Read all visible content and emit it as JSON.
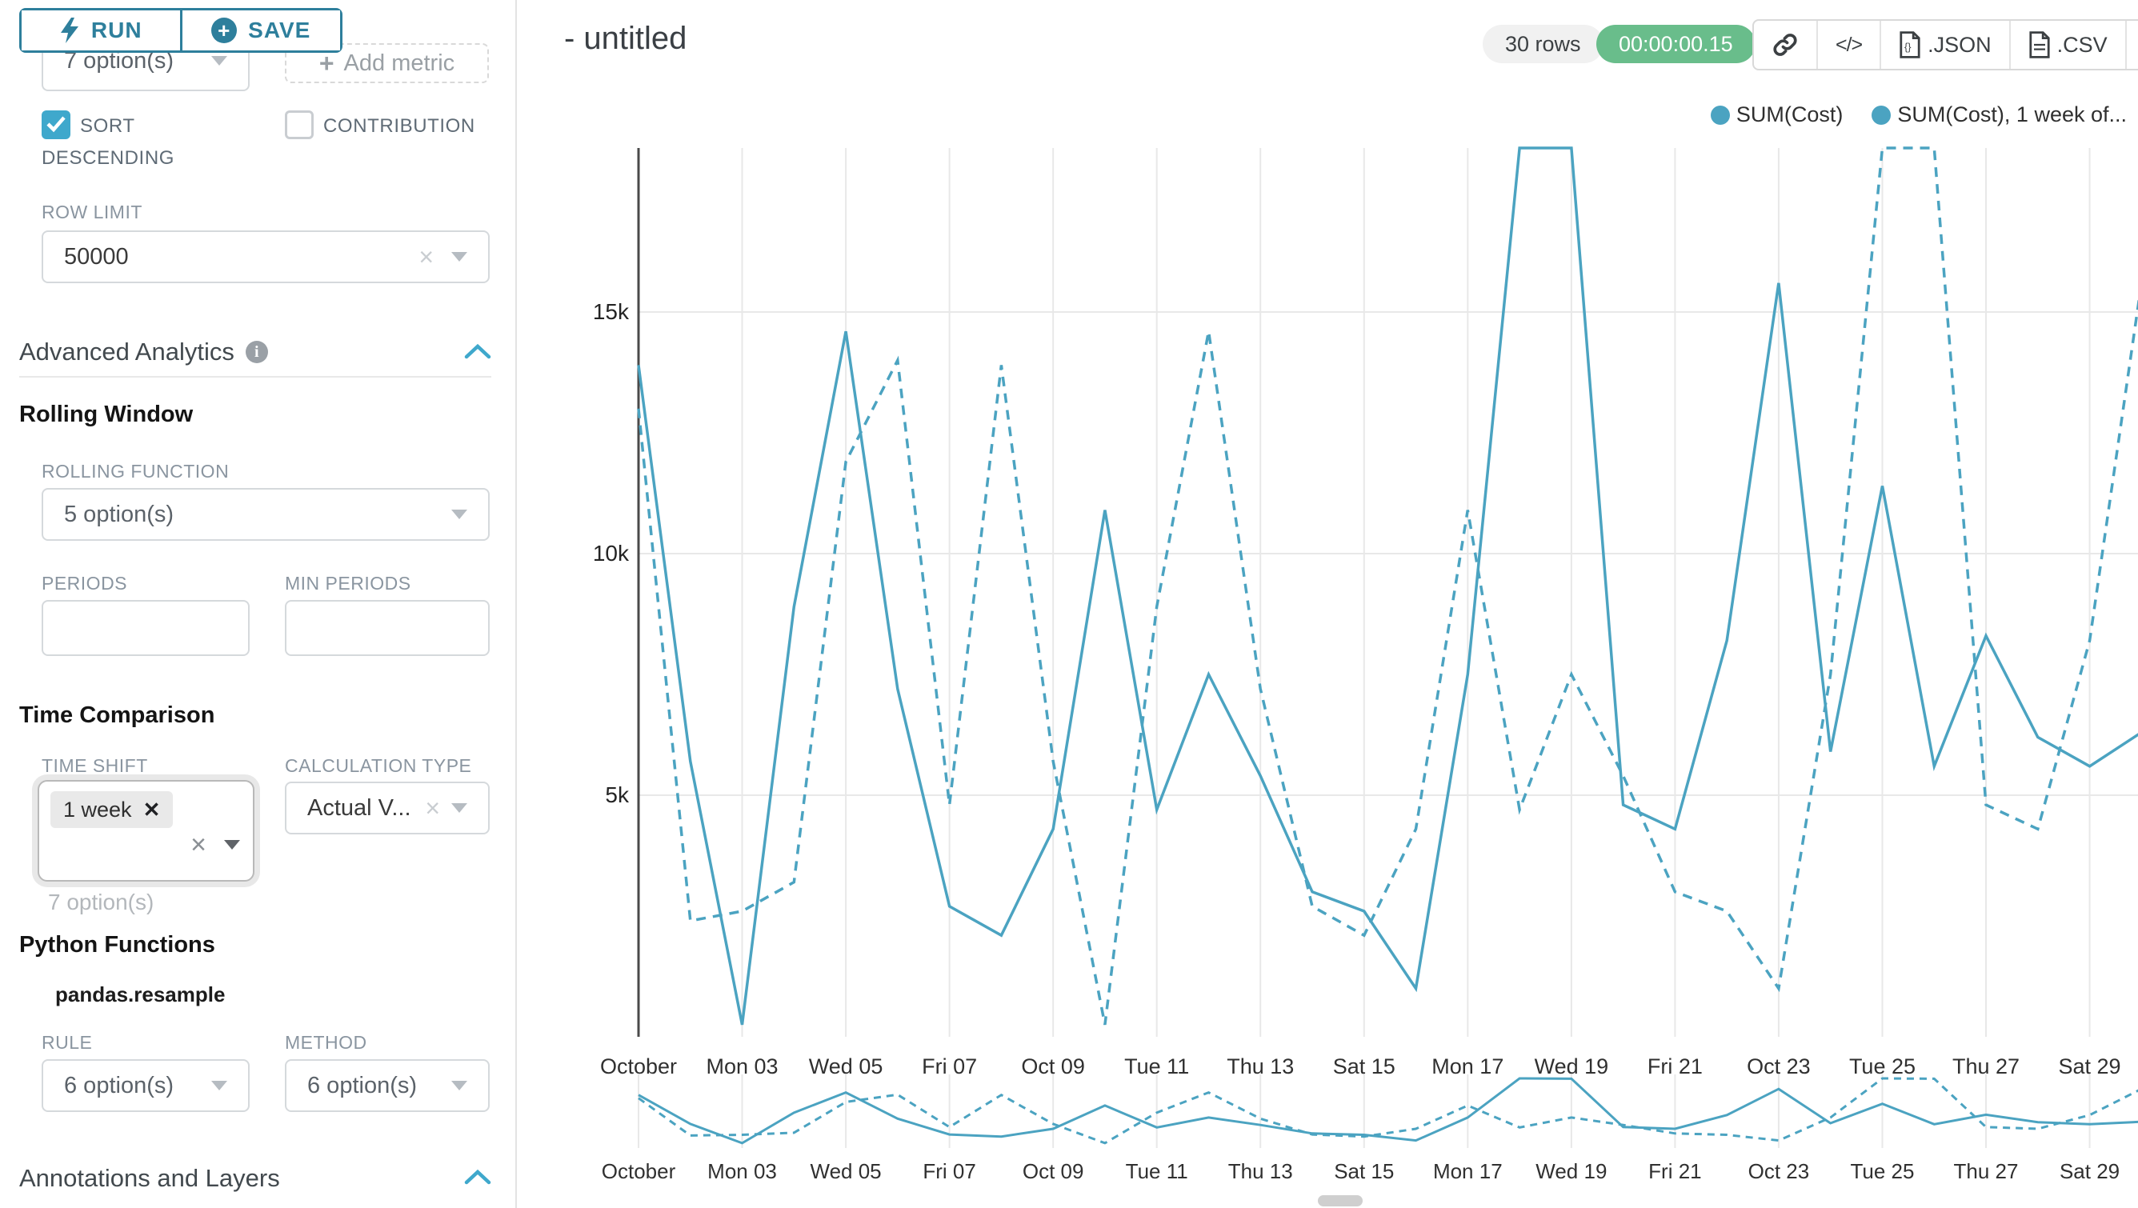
{
  "sidebar": {
    "run_button": "RUN",
    "save_button": "SAVE",
    "series_select_value": "7 option(s)",
    "add_metric_label": "Add metric",
    "sort_descending_label": "SORT DESCENDING",
    "contribution_label": "CONTRIBUTION",
    "row_limit_label": "ROW LIMIT",
    "row_limit_value": "50000",
    "advanced_analytics_title": "Advanced Analytics",
    "rolling_window_title": "Rolling Window",
    "rolling_function_label": "ROLLING FUNCTION",
    "rolling_function_value": "5 option(s)",
    "periods_label": "PERIODS",
    "min_periods_label": "MIN PERIODS",
    "time_comparison_title": "Time Comparison",
    "time_shift_label": "TIME SHIFT",
    "time_shift_tag": "1 week",
    "time_shift_helper": "7 option(s)",
    "calculation_type_label": "CALCULATION TYPE",
    "calculation_type_value": "Actual V...",
    "python_functions_title": "Python Functions",
    "python_function_name": "pandas.resample",
    "rule_label": "RULE",
    "rule_value": "6 option(s)",
    "method_label": "METHOD",
    "method_value": "6 option(s)",
    "annotations_title": "Annotations and Layers"
  },
  "header": {
    "title": "- untitled",
    "rows_badge": "30 rows",
    "timer": "00:00:00.15",
    "json_button": ".JSON",
    "csv_button": ".CSV"
  },
  "colors": {
    "accent_teal": "#2e7f9c",
    "checkbox_teal": "#3fa8cc",
    "line_teal": "#4ba3c1",
    "timer_green": "#69bd8b",
    "grid_gray": "#e8e8e8",
    "axis_dark": "#4a4a4a"
  },
  "chart_data": {
    "type": "line",
    "title": "- untitled",
    "x_axis_note": "daily values, Oct 01 - Oct 30",
    "x_tick_labels": [
      "October",
      "Mon 03",
      "Wed 05",
      "Fri 07",
      "Oct 09",
      "Tue 11",
      "Thu 13",
      "Sat 15",
      "Mon 17",
      "Wed 19",
      "Fri 21",
      "Oct 23",
      "Tue 25",
      "Thu 27",
      "Sat 29"
    ],
    "x_tick_day_indices": [
      0,
      2,
      4,
      6,
      8,
      10,
      12,
      14,
      16,
      18,
      20,
      22,
      24,
      26,
      28
    ],
    "y_tick_labels": [
      "5k",
      "10k",
      "15k"
    ],
    "y_tick_values": [
      5000,
      10000,
      15000
    ],
    "ylim_visible": [
      0,
      18400
    ],
    "grid": true,
    "legend_position": "top-right",
    "series": [
      {
        "name": "SUM(Cost)",
        "legend_label": "SUM(Cost)",
        "line_style": "solid",
        "color": "#4ba3c1",
        "values": [
          13900,
          5700,
          250,
          8900,
          14600,
          7200,
          2700,
          2100,
          4300,
          10900,
          4700,
          7500,
          5400,
          3000,
          2600,
          1000,
          7500,
          18600,
          18500,
          4800,
          4300,
          8200,
          15600,
          5900,
          11400,
          5600,
          8300,
          6200,
          5600,
          6300
        ]
      },
      {
        "name": "SUM(Cost), 1 week offset",
        "legend_label": "SUM(Cost), 1 week of...",
        "line_style": "dashed",
        "color": "#4ba3c1",
        "values": [
          13000,
          2400,
          2600,
          3200,
          11900,
          14000,
          4800,
          13900,
          5700,
          250,
          8900,
          14600,
          7200,
          2700,
          2100,
          4300,
          10900,
          4700,
          7500,
          5400,
          3000,
          2600,
          1000,
          7500,
          18600,
          18500,
          4800,
          4300,
          8200,
          15600
        ]
      }
    ],
    "has_mini_preview_chart": true
  }
}
